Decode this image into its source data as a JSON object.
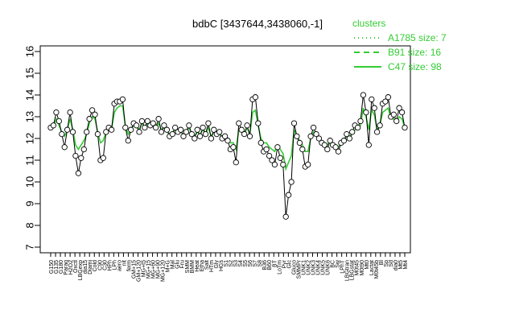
{
  "chart_data": {
    "type": "line",
    "title": "bdbC [3437644,3438060,-1]",
    "xlabel": "",
    "ylabel": "",
    "ylim": [
      7,
      16
    ],
    "yticks": [
      7,
      8,
      9,
      10,
      11,
      12,
      13,
      14,
      15,
      16
    ],
    "grid": false,
    "legend_position": "top-right",
    "legend": {
      "title": "clusters",
      "entries": [
        {
          "label": "A1785 size: 7",
          "style": "dotted"
        },
        {
          "label": "B91 size: 16",
          "style": "dashed"
        },
        {
          "label": "C47 size: 98",
          "style": "solid"
        }
      ]
    },
    "colors": {
      "lines": "#33cc33",
      "points_stroke": "#000000",
      "points_fill": "#ffffff"
    },
    "x_tick_labels": [
      "G150",
      "G135",
      "G180",
      "Paraq",
      "H2O2",
      "Oxctl",
      "LBGexp",
      "dia15",
      "Diami",
      "Cold",
      "C90",
      "C30",
      "HPh",
      "LPh",
      "aero",
      "nit",
      "ferm",
      "GM+15",
      "GM+120",
      "MG+t5",
      "MG+15",
      "MG+60",
      "MG+90",
      "MG+120",
      "M+G",
      "Mal",
      "Glu",
      "Fru",
      "SMM",
      "BMM",
      "Heat",
      "Etha",
      "Salt",
      "HTm",
      "Gly",
      "HGs",
      "S1",
      "S2",
      "S3",
      "S4",
      "S5",
      "S6",
      "S7",
      "S8",
      "B36",
      "B60",
      "BT",
      "LoTm",
      "Pyr",
      "Glc",
      "Gluco",
      "SMMPr",
      "UNK1",
      "UNK2",
      "UNK3",
      "UNK4",
      "UNK5",
      "UNK6",
      "BC",
      "Sw",
      "LPhT",
      "LBGtran",
      "LBGstat",
      "M0t45",
      "M0t90",
      "Mt0",
      "Lactat",
      "M0t45b",
      "Bl",
      "Sp",
      "Sd",
      "dia0",
      "Mt5",
      "Mt4"
    ],
    "x_tick_labels_note": "",
    "points": [
      {
        "x": 1,
        "y": 12.5
      },
      {
        "x": 2,
        "y": 12.6
      },
      {
        "x": 3,
        "y": 13.2
      },
      {
        "x": 4,
        "y": 12.8
      },
      {
        "x": 5,
        "y": 12.2
      },
      {
        "x": 6,
        "y": 11.6
      },
      {
        "x": 7,
        "y": 12.4
      },
      {
        "x": 8,
        "y": 13.2
      },
      {
        "x": 9,
        "y": 12.3
      },
      {
        "x": 10,
        "y": 11.2
      },
      {
        "x": 11,
        "y": 10.4
      },
      {
        "x": 12,
        "y": 11.1
      },
      {
        "x": 13,
        "y": 11.5
      },
      {
        "x": 14,
        "y": 12.3
      },
      {
        "x": 15,
        "y": 12.9
      },
      {
        "x": 16,
        "y": 13.3
      },
      {
        "x": 17,
        "y": 13.1
      },
      {
        "x": 18,
        "y": 12.2
      },
      {
        "x": 19,
        "y": 11.0
      },
      {
        "x": 20,
        "y": 11.1
      },
      {
        "x": 21,
        "y": 12.3
      },
      {
        "x": 22,
        "y": 12.5
      },
      {
        "x": 23,
        "y": 12.4
      },
      {
        "x": 24,
        "y": 13.6
      },
      {
        "x": 25,
        "y": 13.7
      },
      {
        "x": 26,
        "y": 13.7
      },
      {
        "x": 27,
        "y": 13.8
      },
      {
        "x": 28,
        "y": 12.5
      },
      {
        "x": 29,
        "y": 11.9
      },
      {
        "x": 30,
        "y": 12.4
      },
      {
        "x": 31,
        "y": 12.7
      },
      {
        "x": 32,
        "y": 12.6
      },
      {
        "x": 33,
        "y": 12.3
      },
      {
        "x": 34,
        "y": 12.8
      },
      {
        "x": 35,
        "y": 12.5
      },
      {
        "x": 36,
        "y": 12.8
      },
      {
        "x": 37,
        "y": 12.6
      },
      {
        "x": 38,
        "y": 12.7
      },
      {
        "x": 39,
        "y": 12.5
      },
      {
        "x": 40,
        "y": 12.9
      },
      {
        "x": 41,
        "y": 12.3
      },
      {
        "x": 42,
        "y": 12.6
      },
      {
        "x": 43,
        "y": 12.4
      },
      {
        "x": 44,
        "y": 12.1
      },
      {
        "x": 45,
        "y": 12.2
      },
      {
        "x": 46,
        "y": 12.5
      },
      {
        "x": 47,
        "y": 12.3
      },
      {
        "x": 48,
        "y": 12.4
      },
      {
        "x": 49,
        "y": 12.1
      },
      {
        "x": 50,
        "y": 12.3
      },
      {
        "x": 51,
        "y": 12.6
      },
      {
        "x": 52,
        "y": 12.2
      },
      {
        "x": 53,
        "y": 12.0
      },
      {
        "x": 54,
        "y": 12.4
      },
      {
        "x": 55,
        "y": 12.1
      },
      {
        "x": 56,
        "y": 12.5
      },
      {
        "x": 57,
        "y": 12.2
      },
      {
        "x": 58,
        "y": 12.7
      },
      {
        "x": 59,
        "y": 12.0
      },
      {
        "x": 60,
        "y": 12.4
      },
      {
        "x": 61,
        "y": 12.2
      },
      {
        "x": 62,
        "y": 12.3
      },
      {
        "x": 63,
        "y": 12.0
      },
      {
        "x": 64,
        "y": 12.1
      },
      {
        "x": 65,
        "y": 11.9
      },
      {
        "x": 66,
        "y": 11.5
      },
      {
        "x": 67,
        "y": 11.6
      },
      {
        "x": 68,
        "y": 10.9
      },
      {
        "x": 69,
        "y": 12.7
      },
      {
        "x": 70,
        "y": 12.4
      },
      {
        "x": 71,
        "y": 12.2
      },
      {
        "x": 72,
        "y": 12.6
      },
      {
        "x": 73,
        "y": 12.1
      },
      {
        "x": 74,
        "y": 13.8
      },
      {
        "x": 75,
        "y": 13.9
      },
      {
        "x": 76,
        "y": 12.7
      },
      {
        "x": 77,
        "y": 11.8
      },
      {
        "x": 78,
        "y": 11.4
      },
      {
        "x": 79,
        "y": 11.5
      },
      {
        "x": 80,
        "y": 11.2
      },
      {
        "x": 81,
        "y": 11.0
      },
      {
        "x": 82,
        "y": 10.8
      },
      {
        "x": 83,
        "y": 11.6
      },
      {
        "x": 84,
        "y": 11.1
      },
      {
        "x": 85,
        "y": 10.8
      },
      {
        "x": 86,
        "y": 8.4
      },
      {
        "x": 87,
        "y": 9.4
      },
      {
        "x": 88,
        "y": 10.0
      },
      {
        "x": 89,
        "y": 12.7
      },
      {
        "x": 90,
        "y": 12.1
      },
      {
        "x": 91,
        "y": 11.8
      },
      {
        "x": 92,
        "y": 11.5
      },
      {
        "x": 93,
        "y": 10.7
      },
      {
        "x": 94,
        "y": 10.8
      },
      {
        "x": 95,
        "y": 12.1
      },
      {
        "x": 96,
        "y": 12.5
      },
      {
        "x": 97,
        "y": 12.2
      },
      {
        "x": 98,
        "y": 12.0
      },
      {
        "x": 99,
        "y": 11.8
      },
      {
        "x": 100,
        "y": 11.7
      },
      {
        "x": 101,
        "y": 11.5
      },
      {
        "x": 102,
        "y": 11.9
      },
      {
        "x": 103,
        "y": 11.7
      },
      {
        "x": 104,
        "y": 11.6
      },
      {
        "x": 105,
        "y": 11.4
      },
      {
        "x": 106,
        "y": 11.8
      },
      {
        "x": 107,
        "y": 11.9
      },
      {
        "x": 108,
        "y": 12.2
      },
      {
        "x": 109,
        "y": 12.0
      },
      {
        "x": 110,
        "y": 12.3
      },
      {
        "x": 111,
        "y": 12.6
      },
      {
        "x": 112,
        "y": 12.5
      },
      {
        "x": 113,
        "y": 12.8
      },
      {
        "x": 114,
        "y": 14.0
      },
      {
        "x": 115,
        "y": 13.2
      },
      {
        "x": 116,
        "y": 11.7
      },
      {
        "x": 117,
        "y": 13.8
      },
      {
        "x": 118,
        "y": 13.4
      },
      {
        "x": 119,
        "y": 12.3
      },
      {
        "x": 120,
        "y": 12.6
      },
      {
        "x": 121,
        "y": 13.6
      },
      {
        "x": 122,
        "y": 13.7
      },
      {
        "x": 123,
        "y": 13.9
      },
      {
        "x": 124,
        "y": 13.0
      },
      {
        "x": 125,
        "y": 13.1
      },
      {
        "x": 126,
        "y": 12.8
      },
      {
        "x": 127,
        "y": 13.4
      },
      {
        "x": 128,
        "y": 13.2
      },
      {
        "x": 129,
        "y": 12.5
      }
    ],
    "series": [
      {
        "name": "C47 size: 98",
        "style": "solid",
        "values": [
          12.4,
          12.5,
          12.9,
          12.6,
          12.3,
          12.1,
          12.4,
          12.9,
          12.4,
          11.7,
          11.5,
          11.7,
          11.9,
          12.2,
          12.7,
          13.0,
          12.9,
          12.3,
          11.8,
          11.9,
          12.3,
          12.4,
          12.4,
          13.2,
          13.4,
          13.5,
          13.5,
          12.6,
          12.2,
          12.4,
          12.6,
          12.6,
          12.4,
          12.7,
          12.5,
          12.7,
          12.6,
          12.6,
          12.5,
          12.7,
          12.4,
          12.5,
          12.4,
          12.2,
          12.3,
          12.4,
          12.3,
          12.3,
          12.2,
          12.3,
          12.5,
          12.2,
          12.1,
          12.3,
          12.2,
          12.4,
          12.2,
          12.5,
          12.1,
          12.3,
          12.2,
          12.2,
          12.1,
          12.1,
          12.0,
          11.8,
          11.8,
          11.5,
          12.4,
          12.3,
          12.2,
          12.5,
          12.2,
          13.2,
          13.3,
          12.6,
          12.0,
          11.8,
          11.8,
          11.6,
          11.5,
          11.4,
          11.7,
          11.5,
          11.3,
          10.6,
          10.9,
          11.2,
          12.4,
          12.1,
          11.9,
          11.7,
          11.4,
          11.4,
          12.0,
          12.3,
          12.1,
          12.0,
          11.9,
          11.8,
          11.7,
          11.9,
          11.8,
          11.7,
          11.6,
          11.8,
          11.9,
          12.1,
          12.0,
          12.2,
          12.4,
          12.4,
          12.6,
          13.4,
          13.0,
          12.4,
          13.3,
          13.1,
          12.4,
          12.6,
          13.2,
          13.3,
          13.4,
          12.9,
          12.9,
          12.7,
          13.0,
          12.9,
          12.5
        ]
      }
    ]
  }
}
